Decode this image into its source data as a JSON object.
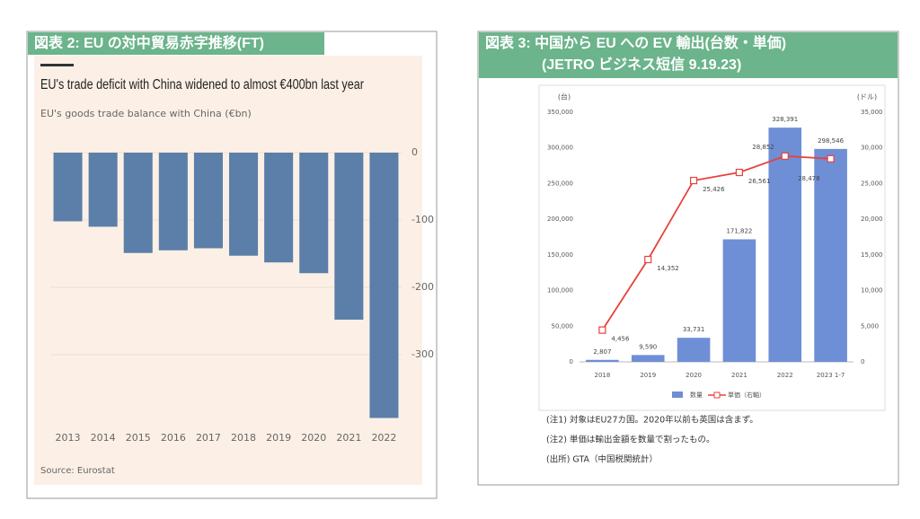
{
  "chart_data": [
    {
      "type": "bar",
      "header": "図表 2: EU の対中貿易赤字推移(FT)",
      "title": "EU's trade deficit with China widened to almost €400bn last year",
      "subtitle": "EU's goods trade balance with China (€bn)",
      "categories": [
        "2013",
        "2014",
        "2015",
        "2016",
        "2017",
        "2018",
        "2019",
        "2020",
        "2021",
        "2022"
      ],
      "values": [
        -102,
        -110,
        -149,
        -145,
        -142,
        -153,
        -163,
        -179,
        -248,
        -394
      ],
      "color": "#5b7fa8",
      "ylim": [
        -400,
        20
      ],
      "yticks": [
        0,
        -100,
        -200,
        -300
      ],
      "grid": true,
      "source": "Source: Eurostat"
    },
    {
      "type": "combo",
      "header": "図表 3: 中国から EU への EV 輸出(台数・単価)",
      "header_sub": "(JETRO ビジネス短信 9.19.23)",
      "y_label": "(台)",
      "y2_label": "(ドル)",
      "categories": [
        "2018",
        "2019",
        "2020",
        "2021",
        "2022",
        "2023 1-7"
      ],
      "series": [
        {
          "name": "数量",
          "type": "bar",
          "color": "#6e8fd6",
          "values": [
            2807,
            9590,
            33731,
            171822,
            328391,
            298546
          ],
          "value_labels": [
            "2,807",
            "9,590",
            "33,731",
            "171,822",
            "328,391",
            "298,546"
          ]
        },
        {
          "name": "単価（右軸）",
          "type": "line",
          "axis": "y2",
          "color": "#e8413b",
          "values": [
            4456,
            14352,
            25426,
            26561,
            28852,
            28478
          ],
          "value_labels": [
            "4,456",
            "14,352",
            "25,426",
            "26,561",
            "28,852",
            "28,478"
          ]
        }
      ],
      "ylim": [
        0,
        350000
      ],
      "yticks": [
        0,
        {
          "value": 50000,
          "label": "50,000"
        },
        {
          "value": 100000,
          "label": "100,000"
        },
        {
          "value": 150000,
          "label": "150,000"
        },
        {
          "value": 200000,
          "label": "200,000"
        },
        {
          "value": 250000,
          "label": "250,000"
        },
        {
          "value": 300000,
          "label": "300,000"
        },
        {
          "value": 350000,
          "label": "350,000"
        }
      ],
      "y2lim": [
        0,
        35000
      ],
      "y2ticks": [
        0,
        {
          "value": 5000,
          "label": "5,000"
        },
        {
          "value": 10000,
          "label": "10,000"
        },
        {
          "value": 15000,
          "label": "15,000"
        },
        {
          "value": 20000,
          "label": "20,000"
        },
        {
          "value": 25000,
          "label": "25,000"
        },
        {
          "value": 30000,
          "label": "30,000"
        },
        {
          "value": 35000,
          "label": "35,000"
        }
      ],
      "notes": [
        "(注1) 対象はEU27カ国。2020年以前も英国は含まず。",
        "(注2) 単価は輸出金額を数量で割ったもの。",
        "(出所) GTA（中国税関統計）"
      ]
    }
  ]
}
